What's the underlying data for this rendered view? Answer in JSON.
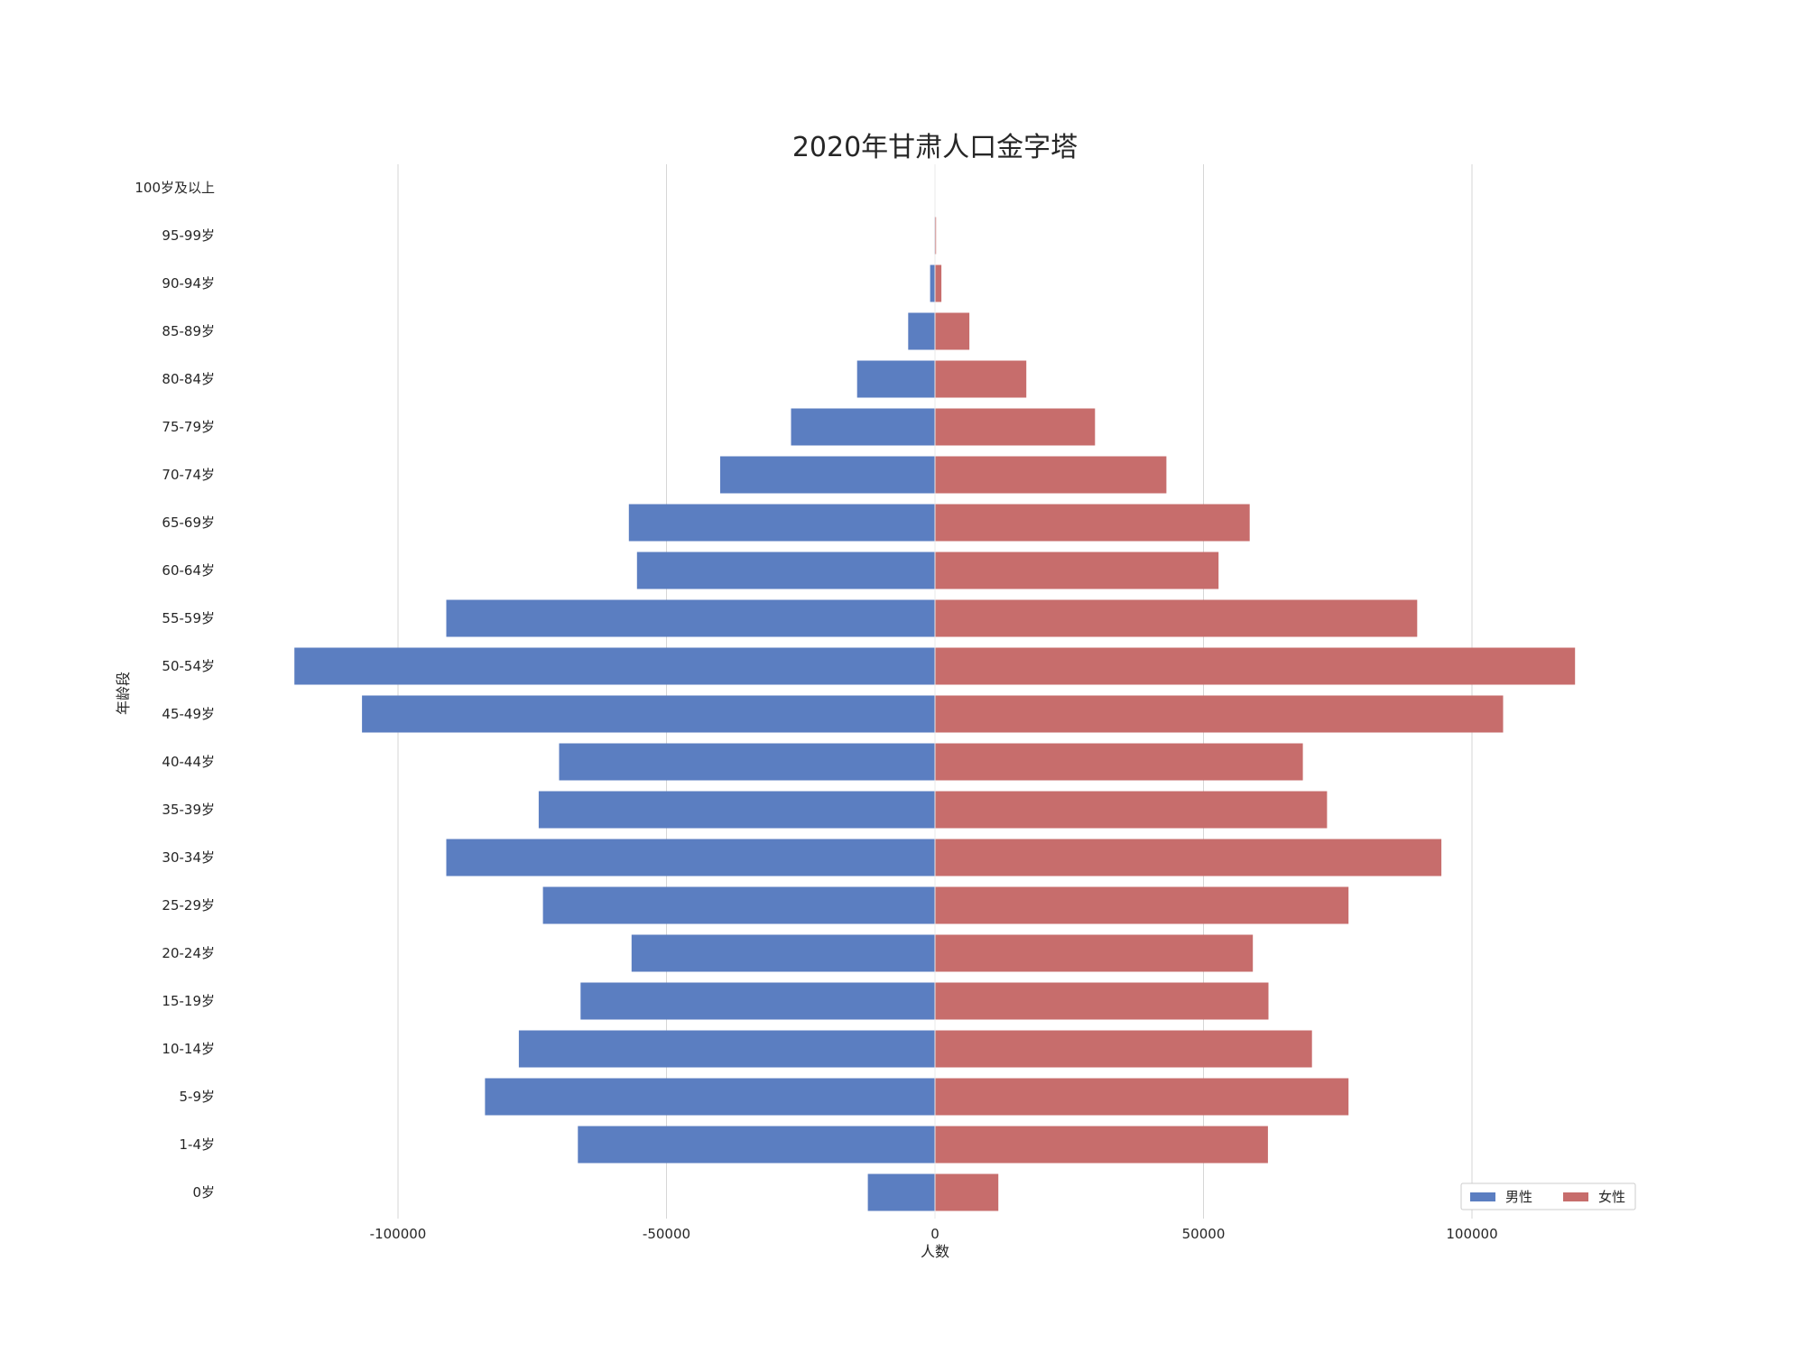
{
  "chart_data": {
    "type": "bar",
    "orientation": "horizontal",
    "title": "2020年甘肃人口金字塔",
    "xlabel": "人数",
    "ylabel": "年龄段",
    "xlim": [
      -130000,
      130000
    ],
    "xticks": [
      -100000,
      -50000,
      0,
      50000,
      100000
    ],
    "grid": "vertical",
    "legend": "bottom-right",
    "categories": [
      "0岁",
      "1-4岁",
      "5-9岁",
      "10-14岁",
      "15-19岁",
      "20-24岁",
      "25-29岁",
      "30-34岁",
      "35-39岁",
      "40-44岁",
      "45-49岁",
      "50-54岁",
      "55-59岁",
      "60-64岁",
      "65-69岁",
      "70-74岁",
      "75-79岁",
      "80-84岁",
      "85-89岁",
      "90-94岁",
      "95-99岁",
      "100岁及以上"
    ],
    "series": [
      {
        "name": "男性",
        "color": "#5b7ec1",
        "values": [
          -12500,
          -66500,
          -83800,
          -77500,
          -66000,
          -56500,
          -73000,
          -91000,
          -73800,
          -70000,
          -106700,
          -119300,
          -91000,
          -55500,
          -57000,
          -40000,
          -26800,
          -14500,
          -5000,
          -900,
          -100,
          0
        ]
      },
      {
        "name": "女性",
        "color": "#c76d6c",
        "values": [
          11800,
          62000,
          77000,
          70200,
          62100,
          59200,
          77000,
          94300,
          73000,
          68500,
          105800,
          119200,
          89800,
          52800,
          58600,
          43100,
          29800,
          17000,
          6400,
          1200,
          200,
          0
        ]
      }
    ]
  }
}
